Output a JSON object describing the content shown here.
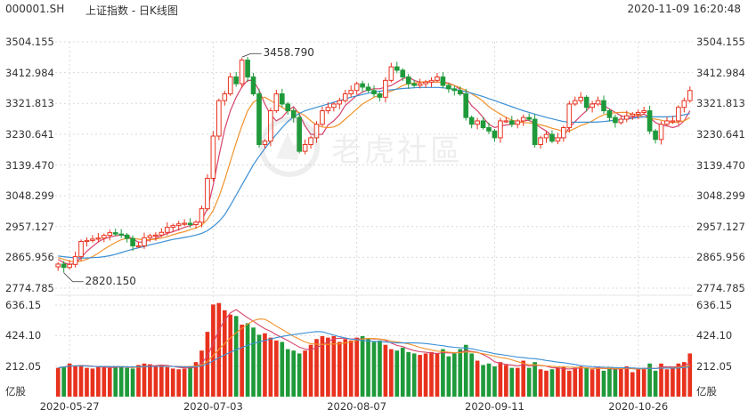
{
  "header": {
    "symbol": "000001.SH",
    "title": "上证指数 - 日K线图",
    "timestamp": "2020-11-09 16:20:48"
  },
  "watermark": "老虎社區",
  "colors": {
    "up": "#e8321e",
    "down": "#1f9a3a",
    "ma5": "#d6436b",
    "ma10": "#f0922b",
    "ma20": "#3b8fd4",
    "grid": "#d9d9d9"
  },
  "chart_data": {
    "type": "candlestick",
    "price_axis": {
      "ticks": [
        "3504.155",
        "3412.984",
        "3321.813",
        "3230.641",
        "3139.470",
        "3048.299",
        "2957.127",
        "2865.956",
        "2774.785"
      ],
      "min": 2774.785,
      "max": 3504.155
    },
    "volume_axis": {
      "ticks": [
        "636.15",
        "424.10",
        "212.05"
      ],
      "unit": "亿股",
      "max": 636.15
    },
    "x_ticks": [
      {
        "label": "2020-05-27",
        "index": 2
      },
      {
        "label": "2020-07-03",
        "index": 27
      },
      {
        "label": "2020-08-07",
        "index": 52
      },
      {
        "label": "2020-09-11",
        "index": 76
      },
      {
        "label": "2020-10-26",
        "index": 101
      }
    ],
    "annotations": [
      {
        "label": "3458.790",
        "index": 32,
        "price": 3458.79
      },
      {
        "label": "2820.150",
        "index": 1,
        "price": 2820.15
      }
    ],
    "closes": [
      2846,
      2836,
      2845,
      2868,
      2913,
      2916,
      2920,
      2923,
      2931,
      2939,
      2935,
      2932,
      2922,
      2900,
      2900,
      2924,
      2930,
      2932,
      2940,
      2955,
      2960,
      2965,
      2967,
      2963,
      2970,
      3010,
      3100,
      3225,
      3330,
      3350,
      3400,
      3380,
      3450,
      3400,
      3350,
      3200,
      3210,
      3300,
      3350,
      3320,
      3300,
      3280,
      3180,
      3200,
      3220,
      3260,
      3300,
      3310,
      3320,
      3330,
      3350,
      3360,
      3380,
      3370,
      3360,
      3350,
      3340,
      3390,
      3430,
      3420,
      3400,
      3380,
      3375,
      3380,
      3385,
      3390,
      3400,
      3375,
      3365,
      3360,
      3350,
      3280,
      3260,
      3270,
      3250,
      3240,
      3220,
      3270,
      3270,
      3260,
      3270,
      3280,
      3275,
      3200,
      3220,
      3230,
      3210,
      3220,
      3250,
      3320,
      3330,
      3340,
      3310,
      3320,
      3330,
      3300,
      3280,
      3265,
      3275,
      3285,
      3290,
      3295,
      3300,
      3240,
      3215,
      3260,
      3270,
      3270,
      3310,
      3330,
      3360
    ],
    "volumes": [
      200,
      210,
      230,
      215,
      220,
      200,
      195,
      205,
      210,
      200,
      210,
      205,
      200,
      195,
      220,
      230,
      225,
      210,
      215,
      205,
      195,
      190,
      195,
      210,
      240,
      320,
      450,
      640,
      650,
      600,
      570,
      560,
      500,
      510,
      480,
      430,
      440,
      410,
      390,
      380,
      330,
      320,
      300,
      320,
      360,
      400,
      420,
      410,
      420,
      380,
      400,
      390,
      410,
      420,
      400,
      380,
      390,
      360,
      330,
      320,
      340,
      310,
      300,
      290,
      300,
      310,
      300,
      330,
      280,
      300,
      330,
      360,
      300,
      250,
      220,
      230,
      210,
      240,
      220,
      200,
      200,
      250,
      200,
      240,
      190,
      180,
      190,
      200,
      210,
      180,
      200,
      210,
      200,
      190,
      200,
      180,
      200,
      190,
      200,
      210,
      170,
      190,
      200,
      230,
      180,
      230,
      190,
      200,
      230,
      240,
      300
    ],
    "ma5": [
      2860,
      2850,
      2845,
      2848,
      2865,
      2884,
      2898,
      2912,
      2921,
      2926,
      2930,
      2932,
      2930,
      2921,
      2911,
      2912,
      2918,
      2922,
      2930,
      2937,
      2942,
      2948,
      2955,
      2960,
      2965,
      2977,
      3009,
      3080,
      3165,
      3245,
      3300,
      3340,
      3370,
      3390,
      3390,
      3360,
      3320,
      3288,
      3270,
      3280,
      3300,
      3312,
      3290,
      3255,
      3230,
      3230,
      3230,
      3258,
      3270,
      3288,
      3316,
      3330,
      3345,
      3355,
      3362,
      3365,
      3365,
      3370,
      3375,
      3385,
      3395,
      3400,
      3390,
      3385,
      3385,
      3385,
      3385,
      3385,
      3382,
      3375,
      3363,
      3340,
      3315,
      3300,
      3280,
      3260,
      3250,
      3255,
      3258,
      3260,
      3262,
      3270,
      3272,
      3262,
      3250,
      3240,
      3225,
      3215,
      3225,
      3250,
      3268,
      3285,
      3300,
      3320,
      3322,
      3316,
      3305,
      3295,
      3285,
      3280,
      3280,
      3285,
      3290,
      3280,
      3265,
      3258,
      3255,
      3250,
      3255,
      3270,
      3300
    ],
    "ma10": [
      2865,
      2860,
      2855,
      2852,
      2855,
      2860,
      2868,
      2878,
      2890,
      2900,
      2910,
      2918,
      2922,
      2922,
      2920,
      2918,
      2918,
      2920,
      2923,
      2927,
      2933,
      2938,
      2942,
      2948,
      2953,
      2961,
      2978,
      3005,
      3045,
      3095,
      3150,
      3205,
      3255,
      3300,
      3325,
      3335,
      3340,
      3330,
      3320,
      3310,
      3300,
      3300,
      3295,
      3285,
      3270,
      3258,
      3252,
      3250,
      3252,
      3260,
      3275,
      3290,
      3305,
      3320,
      3330,
      3340,
      3346,
      3352,
      3358,
      3365,
      3375,
      3380,
      3382,
      3385,
      3386,
      3387,
      3385,
      3383,
      3380,
      3375,
      3368,
      3360,
      3350,
      3340,
      3328,
      3312,
      3300,
      3290,
      3280,
      3272,
      3268,
      3265,
      3264,
      3262,
      3258,
      3254,
      3248,
      3244,
      3238,
      3240,
      3248,
      3256,
      3262,
      3270,
      3280,
      3288,
      3292,
      3294,
      3295,
      3295,
      3290,
      3286,
      3282,
      3278,
      3275,
      3272,
      3268,
      3265,
      3267,
      3270,
      3280
    ],
    "ma20": [
      2870,
      2868,
      2866,
      2865,
      2864,
      2864,
      2865,
      2866,
      2868,
      2871,
      2875,
      2880,
      2885,
      2890,
      2894,
      2898,
      2903,
      2907,
      2911,
      2915,
      2919,
      2922,
      2925,
      2928,
      2932,
      2937,
      2945,
      2957,
      2972,
      2992,
      3020,
      3050,
      3080,
      3110,
      3140,
      3165,
      3188,
      3210,
      3230,
      3250,
      3268,
      3282,
      3292,
      3300,
      3305,
      3310,
      3315,
      3320,
      3325,
      3330,
      3335,
      3340,
      3344,
      3348,
      3352,
      3355,
      3358,
      3360,
      3362,
      3364,
      3366,
      3367,
      3368,
      3369,
      3369,
      3369,
      3369,
      3368,
      3366,
      3363,
      3360,
      3356,
      3352,
      3347,
      3342,
      3336,
      3330,
      3324,
      3318,
      3312,
      3306,
      3300,
      3295,
      3290,
      3285,
      3280,
      3276,
      3272,
      3268,
      3266,
      3266,
      3266,
      3266,
      3266,
      3267,
      3268,
      3270,
      3272,
      3274,
      3276,
      3278,
      3280,
      3282,
      3282,
      3282,
      3282,
      3282,
      3283,
      3285,
      3288,
      3292
    ]
  }
}
